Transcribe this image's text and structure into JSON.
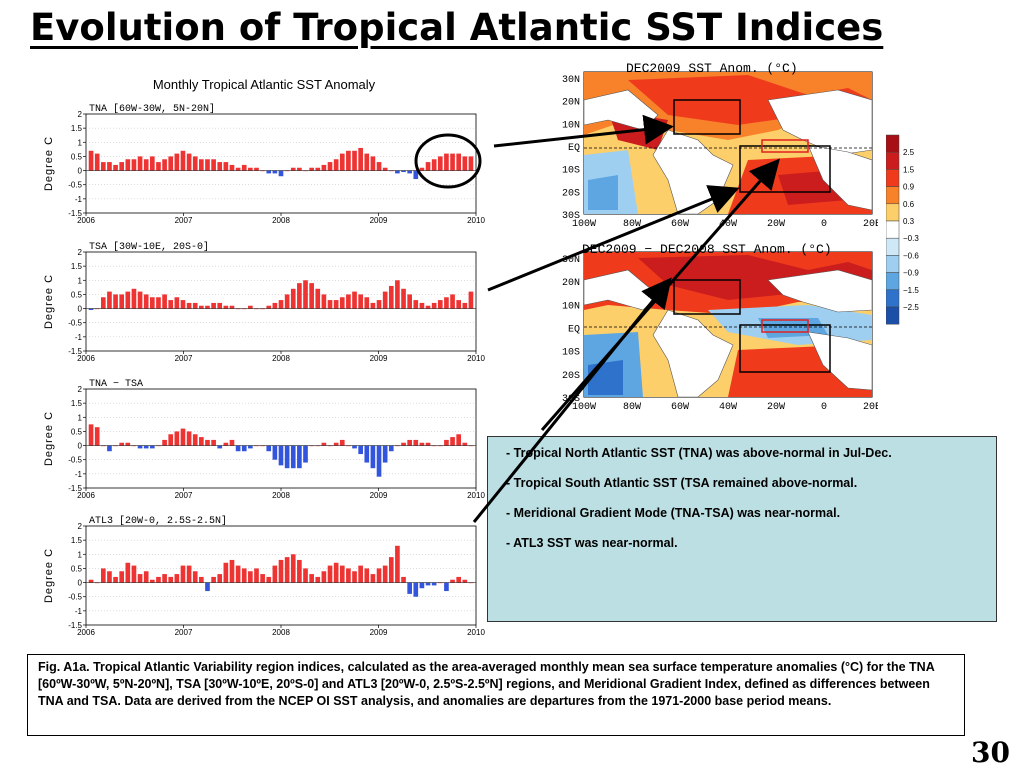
{
  "slide": {
    "title": "Evolution of Tropical Atlantic SST Indices",
    "number": "30"
  },
  "chart_data": [
    {
      "type": "bar",
      "title": "Monthly Tropical Atlantic SST Anomaly",
      "subtitle": "TNA [60W-30W, 5N-20N]",
      "ylabel": "Degree C",
      "ylim": [
        -1.5,
        2
      ],
      "yticks": [
        "2",
        "1.5",
        "1",
        "0.5",
        "0",
        "-0.5",
        "-1",
        "-1.5"
      ],
      "xticks": [
        "2006",
        "2007",
        "2008",
        "2009",
        "2010"
      ],
      "x_start": 2006,
      "x_end": 2010,
      "positive_color": "#ee3333",
      "negative_color": "#3355dd",
      "values": [
        0.7,
        0.6,
        0.3,
        0.3,
        0.2,
        0.3,
        0.4,
        0.4,
        0.5,
        0.4,
        0.5,
        0.3,
        0.4,
        0.5,
        0.6,
        0.7,
        0.6,
        0.5,
        0.4,
        0.4,
        0.4,
        0.3,
        0.3,
        0.2,
        0.1,
        0.2,
        0.1,
        0.1,
        0.0,
        -0.1,
        -0.1,
        -0.2,
        0.0,
        0.1,
        0.1,
        0.0,
        0.1,
        0.1,
        0.2,
        0.3,
        0.4,
        0.6,
        0.7,
        0.7,
        0.8,
        0.6,
        0.5,
        0.3,
        0.1,
        0.0,
        -0.1,
        -0.05,
        -0.1,
        -0.3,
        0.1,
        0.3,
        0.4,
        0.5,
        0.6,
        0.6,
        0.6,
        0.5,
        0.5
      ]
    },
    {
      "type": "bar",
      "subtitle": "TSA [30W-10E, 20S-0]",
      "ylabel": "Degree C",
      "ylim": [
        -1.5,
        2
      ],
      "yticks": [
        "2",
        "1.5",
        "1",
        "0.5",
        "0",
        "-0.5",
        "-1",
        "-1.5"
      ],
      "xticks": [
        "2006",
        "2007",
        "2008",
        "2009",
        "2010"
      ],
      "x_start": 2006,
      "x_end": 2010,
      "positive_color": "#ee3333",
      "negative_color": "#3355dd",
      "values": [
        -0.05,
        0.0,
        0.4,
        0.6,
        0.5,
        0.5,
        0.6,
        0.7,
        0.6,
        0.5,
        0.4,
        0.4,
        0.5,
        0.3,
        0.4,
        0.3,
        0.2,
        0.2,
        0.1,
        0.1,
        0.2,
        0.2,
        0.1,
        0.1,
        0.0,
        0.0,
        0.1,
        0.0,
        0.0,
        0.1,
        0.2,
        0.3,
        0.5,
        0.7,
        0.9,
        1.0,
        0.9,
        0.7,
        0.5,
        0.3,
        0.3,
        0.4,
        0.5,
        0.6,
        0.5,
        0.4,
        0.2,
        0.3,
        0.6,
        0.8,
        1.0,
        0.7,
        0.5,
        0.3,
        0.2,
        0.1,
        0.2,
        0.3,
        0.4,
        0.5,
        0.3,
        0.2,
        0.6
      ]
    },
    {
      "type": "bar",
      "subtitle": "TNA − TSA",
      "ylabel": "Degree C",
      "ylim": [
        -1.5,
        2
      ],
      "yticks": [
        "2",
        "1.5",
        "1",
        "0.5",
        "0",
        "-0.5",
        "-1",
        "-1.5"
      ],
      "xticks": [
        "2006",
        "2007",
        "2008",
        "2009",
        "2010"
      ],
      "x_start": 2006,
      "x_end": 2010,
      "positive_color": "#ee3333",
      "negative_color": "#3355dd",
      "values": [
        0.75,
        0.65,
        0.0,
        -0.2,
        0.0,
        0.1,
        0.1,
        0.0,
        -0.1,
        -0.1,
        -0.1,
        0.0,
        0.2,
        0.4,
        0.5,
        0.6,
        0.5,
        0.4,
        0.3,
        0.2,
        0.2,
        -0.1,
        0.1,
        0.2,
        -0.2,
        -0.2,
        -0.1,
        0.0,
        0.0,
        -0.2,
        -0.5,
        -0.7,
        -0.8,
        -0.8,
        -0.8,
        -0.6,
        0.0,
        0.0,
        0.1,
        0.0,
        0.1,
        0.2,
        0.0,
        -0.1,
        -0.3,
        -0.6,
        -0.8,
        -1.1,
        -0.6,
        -0.2,
        0.0,
        0.1,
        0.2,
        0.2,
        0.1,
        0.1,
        0.0,
        0.0,
        0.2,
        0.3,
        0.4,
        0.1,
        0.0
      ]
    },
    {
      "type": "bar",
      "subtitle": "ATL3 [20W-0, 2.5S-2.5N]",
      "ylabel": "Degree C",
      "ylim": [
        -1.5,
        2
      ],
      "yticks": [
        "2",
        "1.5",
        "1",
        "0.5",
        "0",
        "-0.5",
        "-1",
        "-1.5"
      ],
      "xticks": [
        "2006",
        "2007",
        "2008",
        "2009",
        "2010"
      ],
      "x_start": 2006,
      "x_end": 2010,
      "positive_color": "#ee3333",
      "negative_color": "#3355dd",
      "values": [
        0.1,
        0.0,
        0.5,
        0.4,
        0.2,
        0.4,
        0.7,
        0.6,
        0.3,
        0.4,
        0.1,
        0.2,
        0.3,
        0.2,
        0.3,
        0.6,
        0.6,
        0.4,
        0.2,
        -0.3,
        0.2,
        0.3,
        0.7,
        0.8,
        0.6,
        0.5,
        0.4,
        0.5,
        0.3,
        0.2,
        0.6,
        0.8,
        0.9,
        1.0,
        0.8,
        0.5,
        0.3,
        0.2,
        0.4,
        0.6,
        0.7,
        0.6,
        0.5,
        0.4,
        0.6,
        0.5,
        0.3,
        0.5,
        0.6,
        0.9,
        1.3,
        0.2,
        -0.4,
        -0.5,
        -0.2,
        -0.1,
        -0.1,
        0.0,
        -0.3,
        0.1,
        0.2,
        0.1,
        0.0
      ]
    }
  ],
  "maps": [
    {
      "title": "DEC2009  SST Anom. (°C)",
      "lat_labels": [
        "30N",
        "20N",
        "10N",
        "EQ",
        "10S",
        "20S",
        "30S"
      ],
      "lon_labels": [
        "100W",
        "80W",
        "60W",
        "40W",
        "20W",
        "0",
        "20E"
      ]
    },
    {
      "title": "DEC2009 − DEC2008 SST Anom. (°C)",
      "lat_labels": [
        "30N",
        "20N",
        "10N",
        "EQ",
        "10S",
        "20S",
        "30S"
      ],
      "lon_labels": [
        "100W",
        "80W",
        "60W",
        "40W",
        "20W",
        "0",
        "20E"
      ]
    }
  ],
  "colorbar": {
    "labels": [
      "2.5",
      "1.5",
      "0.9",
      "0.6",
      "0.3",
      "−0.3",
      "−0.6",
      "−0.9",
      "−1.5",
      "−2.5"
    ],
    "colors": [
      "#a50f15",
      "#cb1d1d",
      "#ef3b1c",
      "#f8822a",
      "#fdcf6a",
      "#ffffff",
      "#cfe8f5",
      "#9fcff0",
      "#5da6e2",
      "#2e72cc",
      "#1c4fa8"
    ]
  },
  "callout": {
    "line1": "- Tropical North Atlantic SST (TNA) was above-normal in Jul-Dec.",
    "line2": "- Tropical South Atlantic SST (TSA remained above-normal.",
    "line3": "- Meridional Gradient Mode (TNA-TSA) was near-normal.",
    "line4": "- ATL3 SST was near-normal."
  },
  "caption": "Fig. A1a. Tropical Atlantic Variability region indices, calculated as the area-averaged monthly mean sea surface temperature anomalies (°C) for the TNA [60ºW-30ºW, 5ºN-20ºN], TSA [30ºW-10ºE, 20ºS-0] and ATL3 [20ºW-0, 2.5ºS-2.5ºN] regions, and Meridional Gradient Index, defined as differences between TNA and TSA. Data are derived from the NCEP OI SST analysis, and anomalies are departures from the 1971-2000 base period means."
}
